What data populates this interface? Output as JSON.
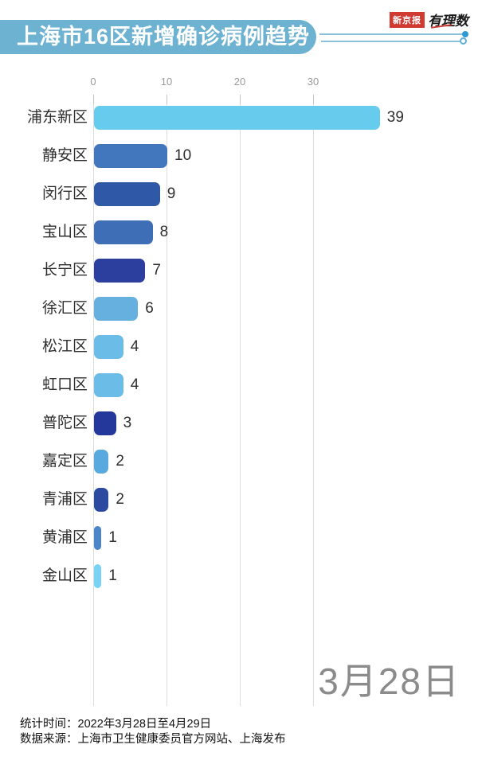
{
  "header": {
    "title": "上海市16区新增确诊病例趋势",
    "brand": {
      "newspaper": "新京报",
      "column": "有理数"
    }
  },
  "chart_data": {
    "type": "bar",
    "orientation": "horizontal",
    "title": "上海市16区新增确诊病例趋势",
    "date_label": "3月28日",
    "categories": [
      "浦东新区",
      "静安区",
      "闵行区",
      "宝山区",
      "长宁区",
      "徐汇区",
      "松江区",
      "虹口区",
      "普陀区",
      "嘉定区",
      "青浦区",
      "黄浦区",
      "金山区"
    ],
    "values": [
      39,
      10,
      9,
      8,
      7,
      6,
      4,
      4,
      3,
      2,
      2,
      1,
      1
    ],
    "bar_colors": [
      "#67CBEE",
      "#4377BD",
      "#2F58A7",
      "#3E6EB6",
      "#2C3F9E",
      "#66B0E0",
      "#6CBCE8",
      "#6CBCE8",
      "#24389B",
      "#58A9DE",
      "#2B4AA0",
      "#4A86C8",
      "#79D3F2"
    ],
    "x_ticks": [
      0,
      10,
      20,
      30
    ],
    "xlim": [
      0,
      40
    ],
    "grid": true,
    "legend": "none"
  },
  "footer": {
    "stat_time": "统计时间：2022年3月28日至4月29日",
    "source": "数据来源：上海市卫生健康委员官方网站、上海发布"
  }
}
